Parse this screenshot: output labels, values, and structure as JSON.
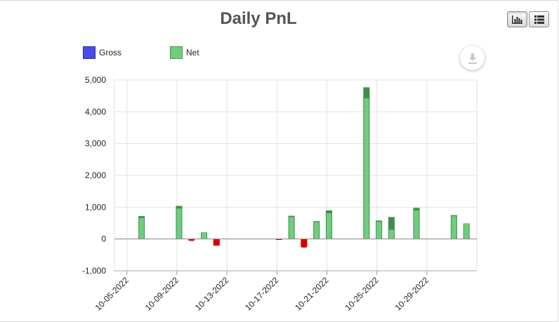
{
  "header": {
    "title": "Daily PnL"
  },
  "toolbar": {
    "chart_view_icon": "bar-chart-icon",
    "list_view_icon": "list-icon",
    "export_icon": "download-icon"
  },
  "chart_data": {
    "type": "bar",
    "title": "Daily PnL",
    "xlabel": "",
    "ylabel": "",
    "ylim": [
      -1000,
      5000
    ],
    "yticks": [
      -1000,
      0,
      1000,
      2000,
      3000,
      4000,
      5000
    ],
    "ytick_labels": [
      "-1,000",
      "0",
      "1,000",
      "2,000",
      "3,000",
      "4,000",
      "5,000"
    ],
    "x_range": [
      "10-04-2022",
      "11-02-2022"
    ],
    "xtick_labels": [
      "10-05-2022",
      "10-09-2022",
      "10-13-2022",
      "10-17-2022",
      "10-21-2022",
      "10-25-2022",
      "10-29-2022"
    ],
    "grid": true,
    "legend": "top-left",
    "positive_color": "#70cd7f",
    "negative_color": "#dd0000",
    "dates": [
      "10-05-2022",
      "10-06-2022",
      "10-09-2022",
      "10-10-2022",
      "10-11-2022",
      "10-12-2022",
      "10-17-2022",
      "10-18-2022",
      "10-19-2022",
      "10-20-2022",
      "10-21-2022",
      "10-24-2022",
      "10-25-2022",
      "10-26-2022",
      "10-28-2022",
      "10-31-2022",
      "11-01-2022"
    ],
    "series": [
      {
        "name": "Gross",
        "color": "#4b4be8",
        "values": [
          0,
          720,
          1040,
          -40,
          210,
          -210,
          -30,
          730,
          -250,
          560,
          900,
          4770,
          580,
          690,
          980,
          750,
          490
        ]
      },
      {
        "name": "Net",
        "color": "#70cd7f",
        "values": [
          0,
          660,
          960,
          -60,
          200,
          -200,
          -20,
          690,
          -270,
          530,
          810,
          4420,
          540,
          290,
          900,
          720,
          480
        ]
      }
    ]
  }
}
